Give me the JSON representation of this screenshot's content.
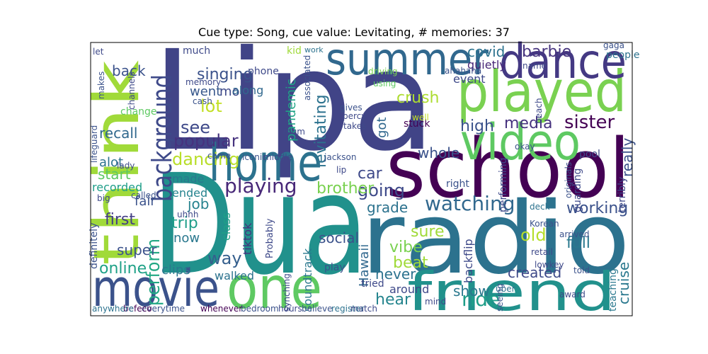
{
  "chart_data": {
    "type": "wordcloud",
    "title": "Cue type: Song, cue value: Levitating, # memories: 37",
    "words": [
      "Lipa",
      "Dua",
      "radio",
      "school",
      "played",
      "dance",
      "summer",
      "video",
      "home",
      "think",
      "movie",
      "one",
      "friend",
      "background",
      "perform",
      "back",
      "singing",
      "went",
      "mom",
      "lot",
      "see",
      "popular",
      "dancing",
      "made",
      "ended",
      "recall",
      "alot",
      "start",
      "recorded",
      "first",
      "super",
      "online",
      "playing",
      "job",
      "trip",
      "now",
      "way",
      "clips",
      "walked",
      "along",
      "phone",
      "kid",
      "work",
      "pandemic",
      "levitating",
      "got",
      "covid",
      "barbie",
      "quietly",
      "event",
      "sister",
      "media",
      "high",
      "whole",
      "car",
      "going",
      "brother",
      "crush",
      "beat",
      "watching",
      "grade",
      "working",
      "social",
      "sure",
      "vibe",
      "hear",
      "never",
      "around",
      "ride",
      "show",
      "old",
      "full",
      "created",
      "cruise",
      "Hawaii",
      "Probably",
      "class",
      "tiktok",
      "soundtrack",
      "play",
      "tried",
      "backflip",
      "really",
      "terribly",
      "fair",
      "uber",
      "mind",
      "register",
      "believe",
      "hours",
      "bedroom",
      "whenever",
      "everytime",
      "befeco",
      "anywhere",
      "teaching",
      "award",
      "Korean",
      "deck",
      "arrived",
      "lowkey",
      "retail",
      "told",
      "stuck",
      "well",
      "percy",
      "gives",
      "takes",
      "jackson",
      "lip",
      "iconic",
      "middle",
      "came",
      "mum",
      "lady",
      "big",
      "called",
      "change",
      "lifeguard",
      "definitely",
      "much",
      "memory",
      "cash",
      "makes",
      "let",
      "gaga",
      "people",
      "beach",
      "okay",
      "pool",
      "guarding",
      "originals",
      "performing",
      "right",
      "match",
      "seeing",
      "synching",
      "uhhh",
      "ahahaha",
      "name",
      "associated",
      "channels",
      "driving",
      "using"
    ]
  }
}
